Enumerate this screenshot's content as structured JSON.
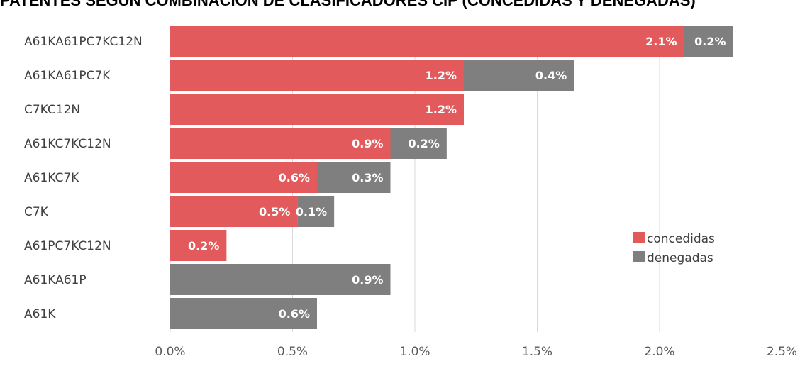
{
  "chart_data": {
    "type": "bar",
    "orientation": "horizontal",
    "stacked": true,
    "title": "PATENTES SEGÚN COMBINACIÓN DE CLASIFICADORES CIP (CONCEDIDAS Y DENEGADAS)",
    "categories": [
      "A61KA61PC7KC12N",
      "A61KA61PC7K",
      "C7KC12N",
      "A61KC7KC12N",
      "A61KC7K",
      "C7K",
      "A61PC7KC12N",
      "A61KA61P",
      "A61K"
    ],
    "series": [
      {
        "name": "concedidas",
        "color": "#e35a5c",
        "values": [
          2.1,
          1.2,
          1.2,
          0.9,
          0.6,
          0.52,
          0.23,
          0,
          0
        ],
        "labels": [
          "2.1%",
          "1.2%",
          "1.2%",
          "0.9%",
          "0.6%",
          "0.5%",
          "0.2%",
          "",
          ""
        ]
      },
      {
        "name": "denegadas",
        "color": "#7f7f7f",
        "values": [
          0.2,
          0.45,
          0,
          0.23,
          0.3,
          0.15,
          0,
          0.9,
          0.6
        ],
        "labels": [
          "0.2%",
          "0.4%",
          "",
          "0.2%",
          "0.3%",
          "0.1%",
          "",
          "0.9%",
          "0.6%"
        ]
      }
    ],
    "xlim": [
      0,
      2.5
    ],
    "xticks": [
      "0.0%",
      "0.5%",
      "1.0%",
      "1.5%",
      "2.0%",
      "2.5%"
    ],
    "grid": true,
    "legend": "right"
  }
}
